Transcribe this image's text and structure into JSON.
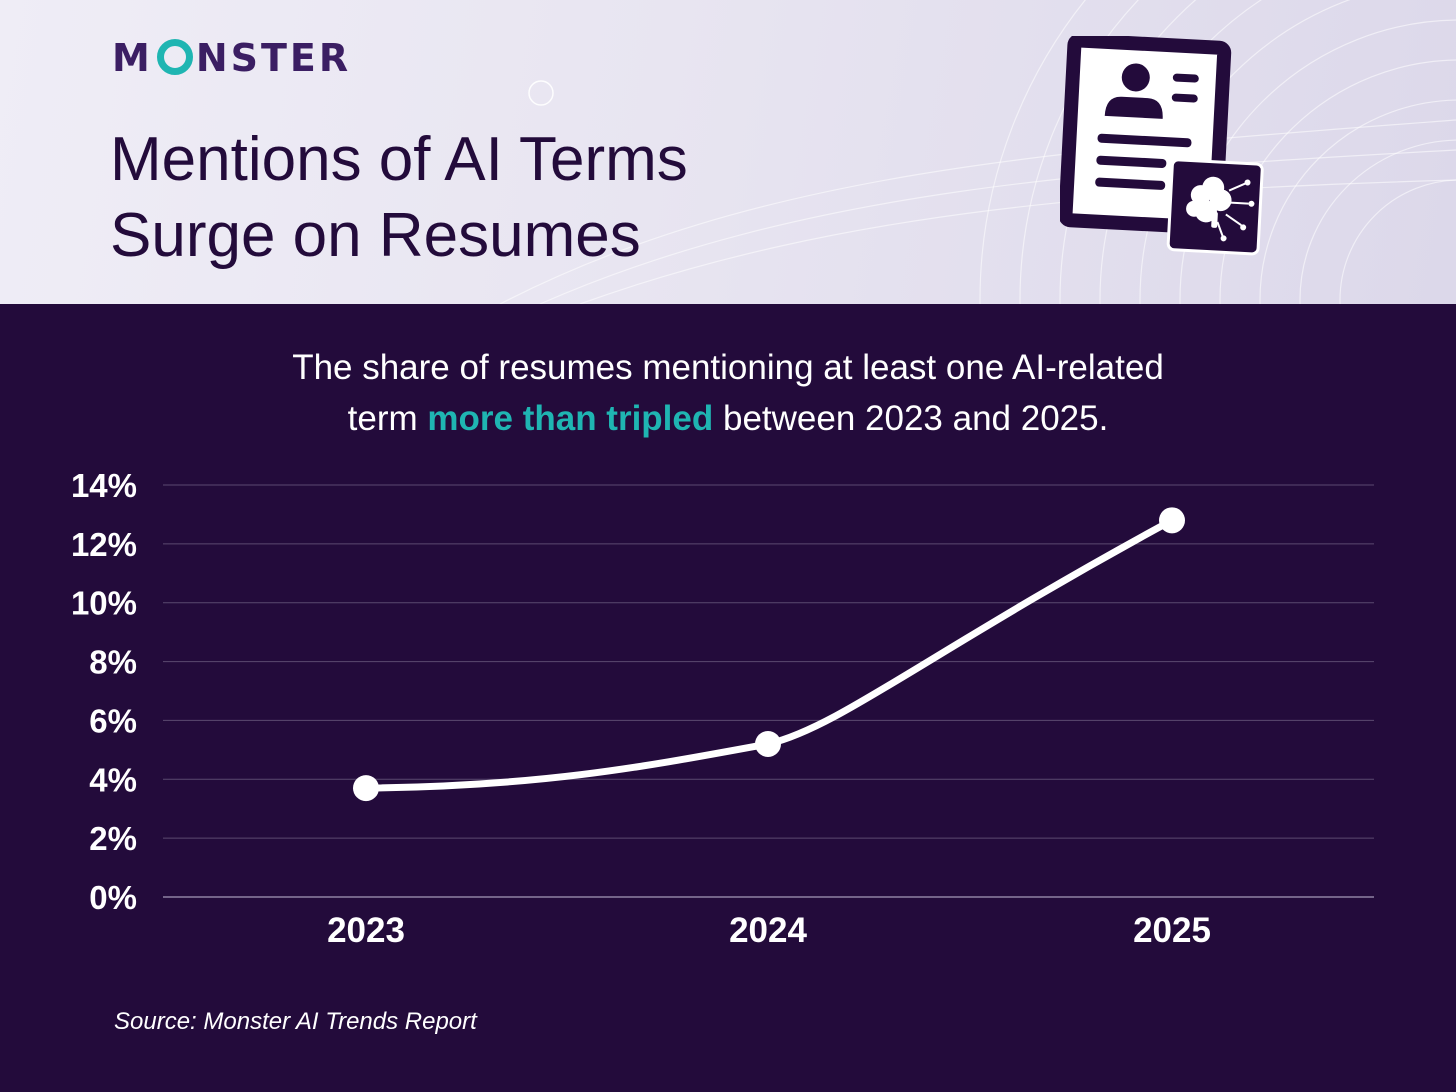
{
  "brand": {
    "logo_prefix": "M",
    "logo_suffix": "NSTER",
    "accent_color": "#1fb5b2",
    "background_color": "#230b3b"
  },
  "header": {
    "title_line1": "Mentions of AI Terms",
    "title_line2": "Surge on Resumes",
    "illustration_icon": "resume-with-ai-brain-icon"
  },
  "subtitle": {
    "part1": "The share of resumes mentioning at least one AI-related",
    "part2": "term ",
    "highlight": "more than tripled",
    "part3": " between 2023 and 2025."
  },
  "chart_data": {
    "type": "line",
    "categories": [
      "2023",
      "2024",
      "2025"
    ],
    "series": [
      {
        "values": [
          3.7,
          5.2,
          12.8
        ]
      }
    ],
    "ylim": [
      0,
      14
    ],
    "yticks": [
      0,
      2,
      4,
      6,
      8,
      10,
      12,
      14
    ],
    "ytick_labels": [
      "0%",
      "2%",
      "4%",
      "6%",
      "8%",
      "10%",
      "12%",
      "14%"
    ],
    "xlabel": "",
    "ylabel": "",
    "grid": true,
    "line_color": "#ffffff",
    "marker_color": "#ffffff"
  },
  "source": "Source: Monster AI Trends Report"
}
